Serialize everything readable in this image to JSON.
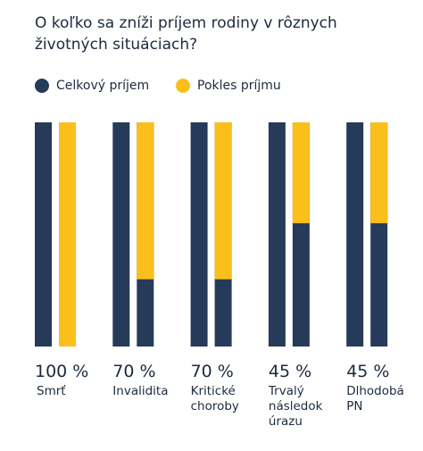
{
  "chart_data": {
    "type": "bar",
    "title": "O koľko sa zníži príjem rodiny v rôznych životných situáciach?",
    "categories": [
      "Smrť",
      "Invalidita",
      "Kritické choroby",
      "Trvalý následok úrazu",
      "Dlhodobá PN"
    ],
    "series": [
      {
        "name": "Celkový príjem",
        "color": "#263b5a",
        "values": [
          100,
          100,
          100,
          100,
          100
        ]
      },
      {
        "name": "Pokles príjmu",
        "color": "#fbbf1c",
        "values": [
          100,
          70,
          70,
          45,
          45
        ],
        "value_labels": [
          "100 %",
          "70 %",
          "70 %",
          "45 %",
          "45 %"
        ]
      }
    ],
    "ylim": [
      0,
      100
    ]
  }
}
